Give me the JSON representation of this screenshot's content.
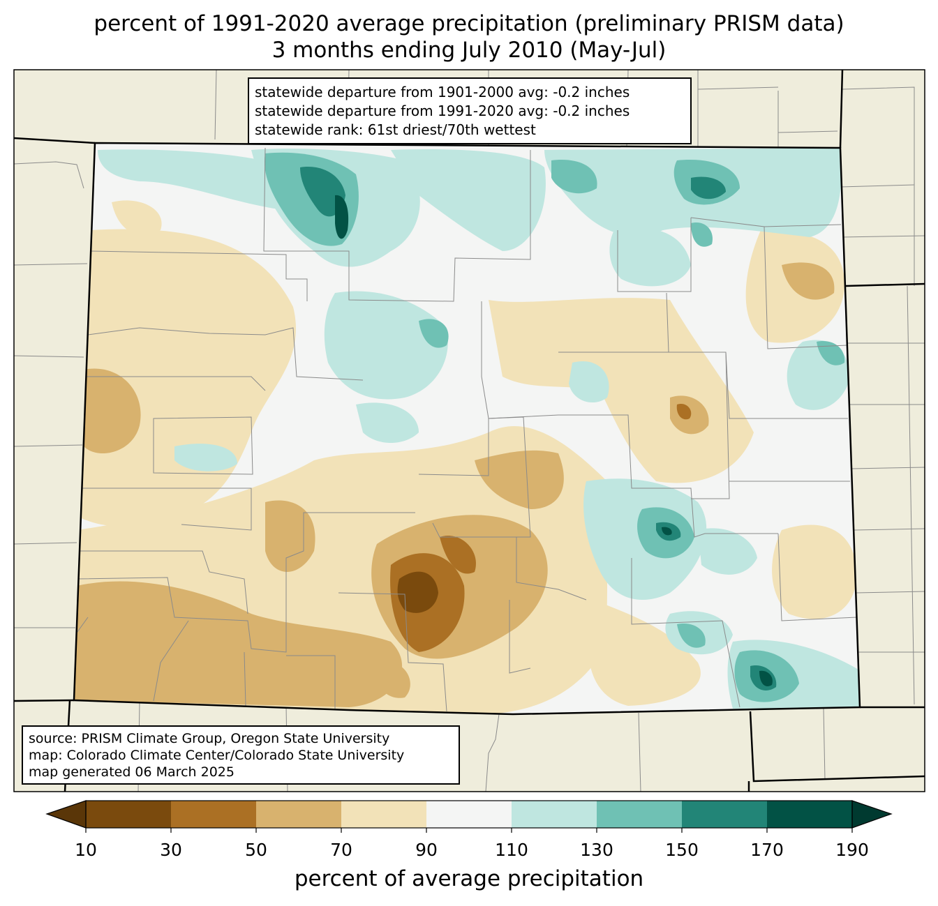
{
  "title": {
    "line1": "percent of 1991-2020 average precipitation (preliminary PRISM data)",
    "line2": "3 months ending July 2010 (May-Jul)"
  },
  "stats": {
    "line1": "statewide departure from 1901-2000 avg: -0.2 inches",
    "line2": "statewide departure from 1991-2020 avg: -0.2 inches",
    "line3": "statewide rank: 61st driest/70th wettest"
  },
  "source": {
    "line1": "source: PRISM Climate Group, Oregon State University",
    "line2": "map: Colorado Climate Center/Colorado State University",
    "line3": "map generated 06 March 2025"
  },
  "colorbar": {
    "label": "percent of average precipitation",
    "ticks": [
      "10",
      "30",
      "50",
      "70",
      "90",
      "110",
      "130",
      "150",
      "170",
      "190"
    ],
    "colors": [
      "#7a4a0d",
      "#ab7024",
      "#d8b26e",
      "#f2e2b8",
      "#f4f5f4",
      "#bfe6e0",
      "#6fc1b4",
      "#228577",
      "#025245"
    ],
    "under_color": "#5a3608",
    "over_color": "#003a30"
  },
  "map_colors": {
    "background": "#efeddc",
    "state_line": "#000000",
    "county_line": "#8a8a8a"
  }
}
